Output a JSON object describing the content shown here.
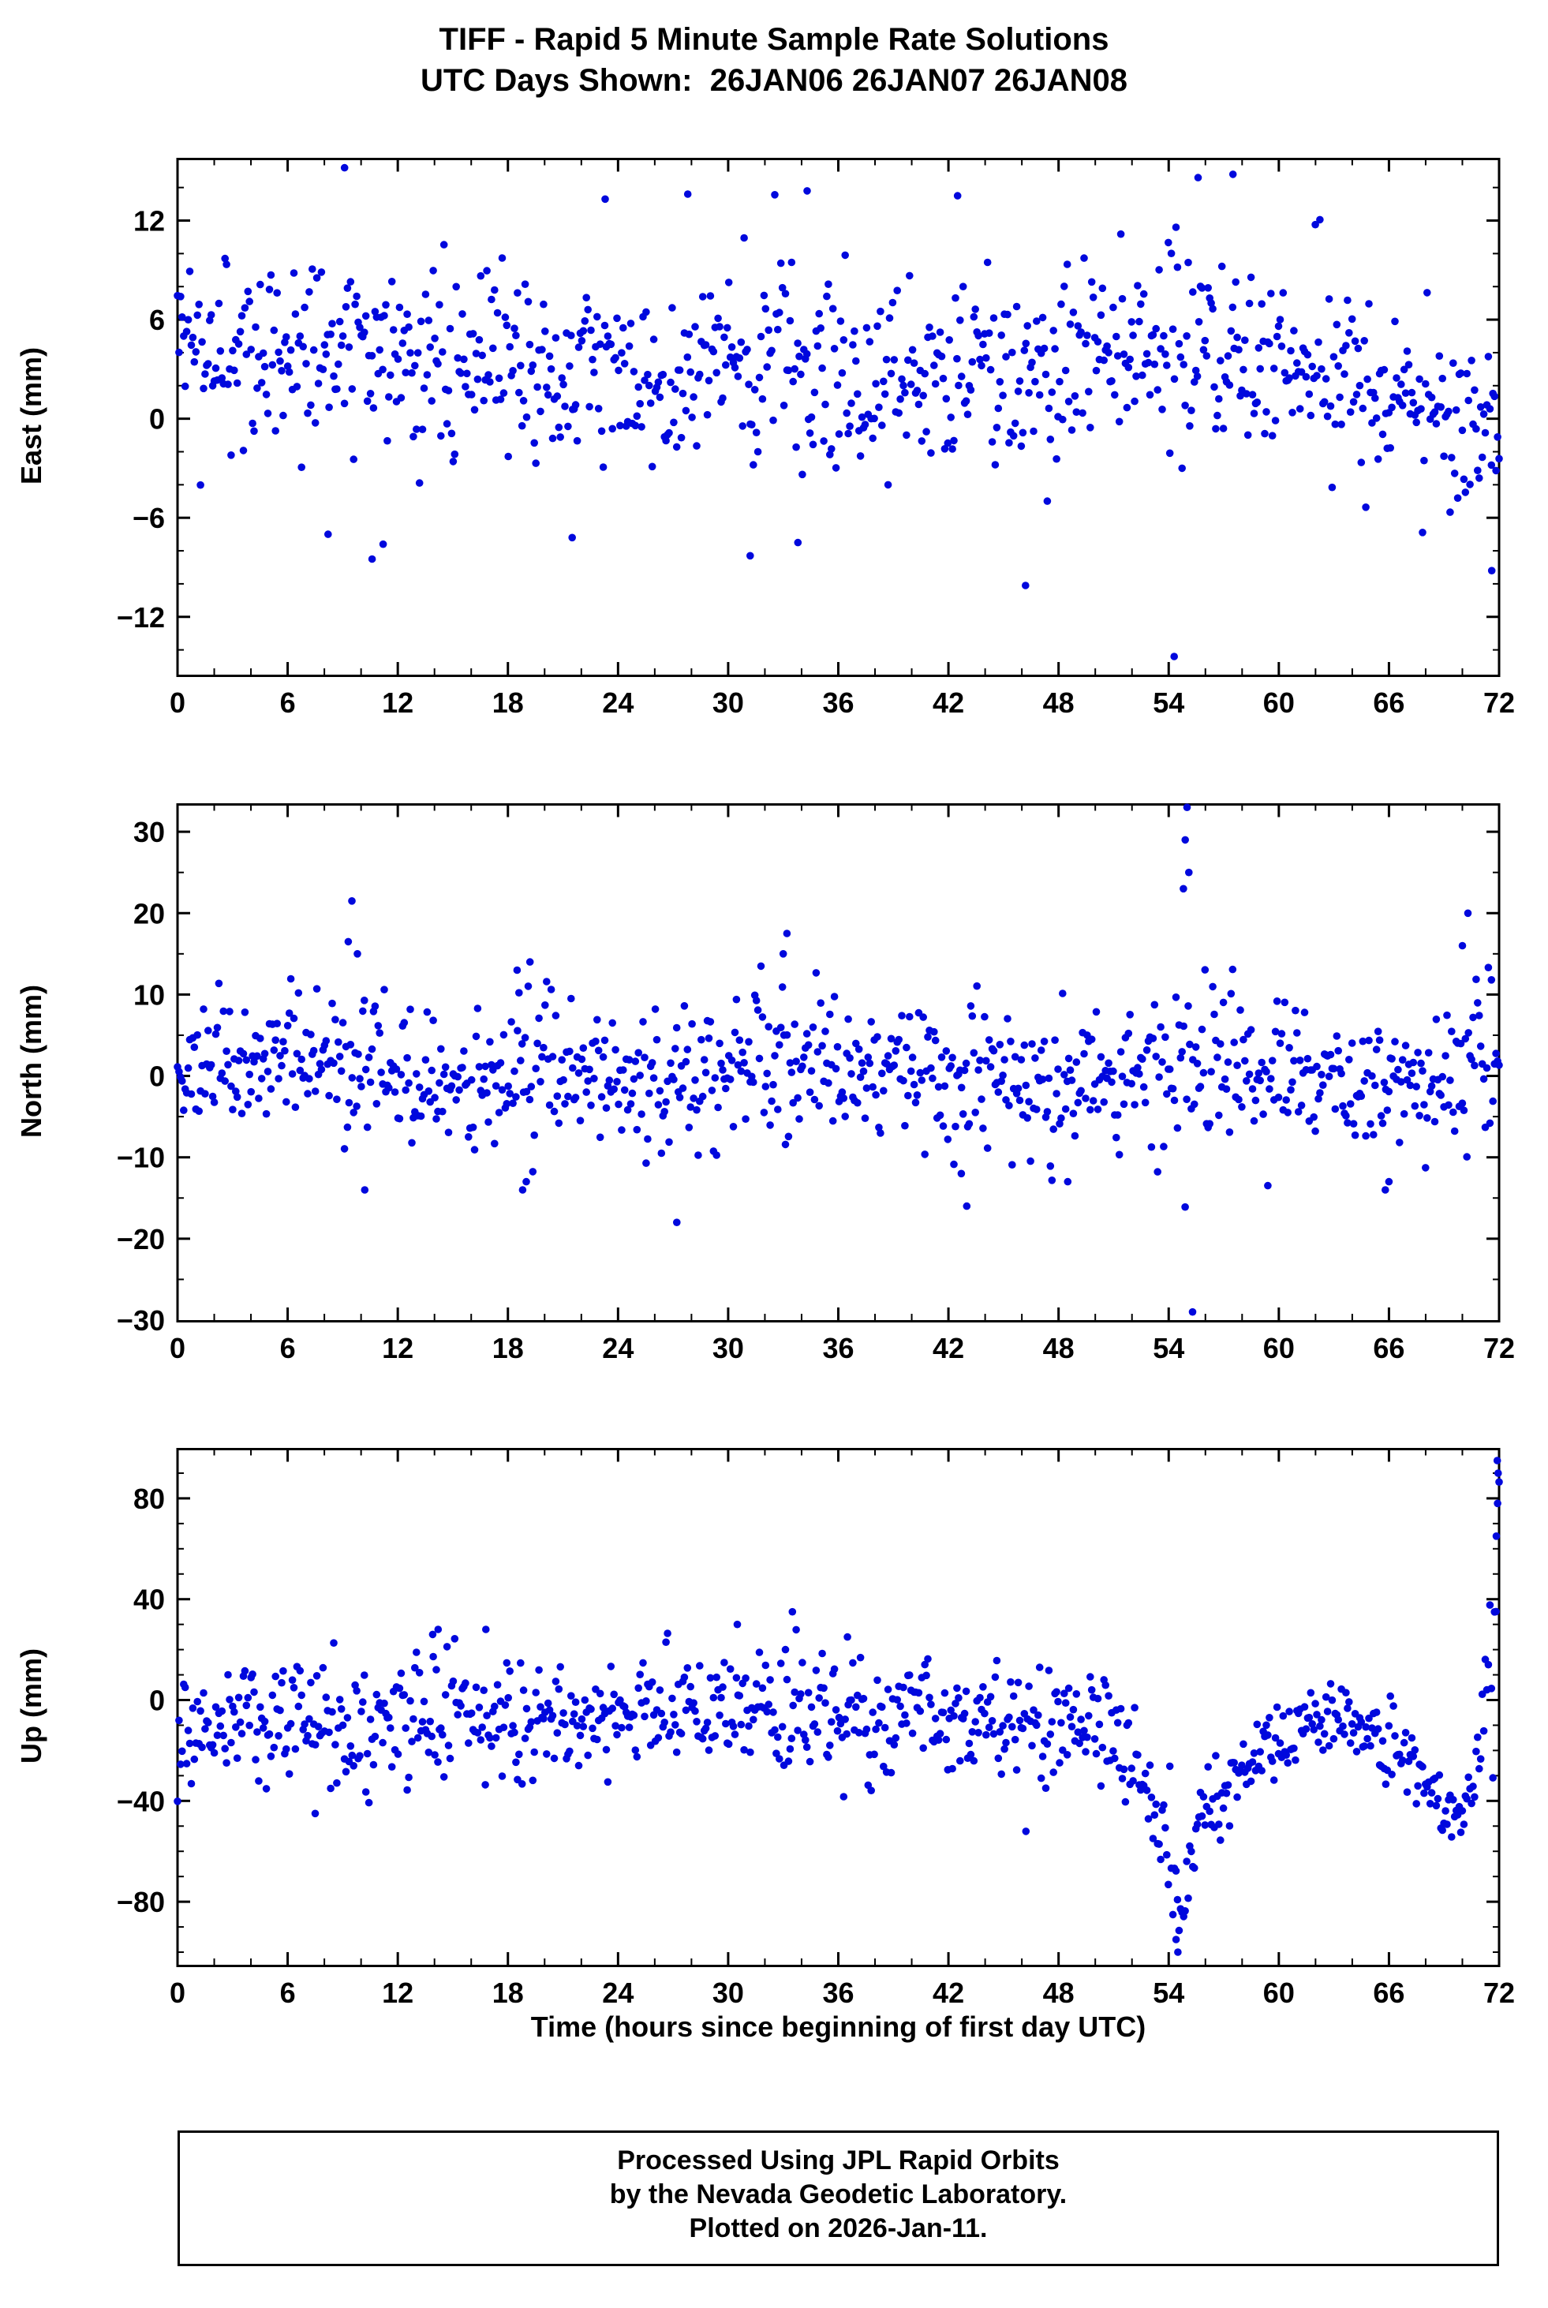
{
  "title": {
    "line1": "TIFF - Rapid 5 Minute Sample Rate Solutions",
    "line2": "UTC Days Shown:  26JAN06 26JAN07 26JAN08"
  },
  "footer": {
    "line1": "Processed Using JPL Rapid Orbits",
    "line2": "by the Nevada Geodetic Laboratory.",
    "line3": "Plotted on 2026-Jan-11."
  },
  "chart_data": {
    "type": "scatter",
    "station": "TIFF",
    "xlabel": "Time (hours since beginning of first day UTC)",
    "x_range": [
      0,
      72
    ],
    "x_ticks": [
      0,
      6,
      12,
      18,
      24,
      30,
      36,
      42,
      48,
      54,
      60,
      66,
      72
    ],
    "x_minor_step": 2,
    "sample_interval_hours": 0.0833,
    "n_points": 864,
    "seed": 42,
    "marker_color": "#0008dd",
    "marker_radius": 4.8,
    "grid": false,
    "legend": "none",
    "subplots": [
      {
        "name": "east",
        "ylabel": "East (mm)",
        "ylim": [
          -15.5,
          15.8
        ],
        "yticks": [
          -12,
          -6,
          0,
          6,
          12
        ],
        "y_minor_step": 2,
        "mean_std_profile": [
          [
            0,
            3.5,
            2.8
          ],
          [
            8,
            4.5,
            3.2
          ],
          [
            12,
            3.2,
            3.0
          ],
          [
            20,
            3.0,
            3.0
          ],
          [
            28,
            3.2,
            3.0
          ],
          [
            36,
            3.0,
            3.0
          ],
          [
            44,
            2.5,
            3.0
          ],
          [
            50,
            4.0,
            3.3
          ],
          [
            56,
            4.5,
            3.5
          ],
          [
            62,
            3.0,
            3.0
          ],
          [
            67,
            1.0,
            3.0
          ],
          [
            72,
            -1.0,
            3.2
          ]
        ],
        "outliers": [
          [
            9.1,
            15.2
          ],
          [
            55.6,
            14.6
          ],
          [
            57.5,
            14.8
          ],
          [
            54.3,
            -14.4
          ],
          [
            46.2,
            -10.1
          ],
          [
            10.6,
            -8.5
          ],
          [
            31.2,
            -8.3
          ],
          [
            71.6,
            -9.2
          ],
          [
            23.3,
            13.3
          ],
          [
            27.8,
            13.6
          ],
          [
            34.3,
            13.8
          ],
          [
            42.5,
            13.5
          ],
          [
            21.5,
            -7.2
          ],
          [
            8.2,
            -7.0
          ],
          [
            11.2,
            -7.6
          ],
          [
            33.8,
            -7.5
          ]
        ]
      },
      {
        "name": "north",
        "ylabel": "North (mm)",
        "ylim": [
          -30,
          33.5
        ],
        "yticks": [
          -30,
          -20,
          -10,
          0,
          10,
          20,
          30
        ],
        "y_minor_step": 5,
        "mean_std_profile": [
          [
            0,
            0,
            4.5
          ],
          [
            7,
            3,
            5
          ],
          [
            10,
            4,
            5.5
          ],
          [
            12,
            0,
            4
          ],
          [
            16,
            -1,
            4
          ],
          [
            19,
            0,
            5
          ],
          [
            24,
            0,
            4
          ],
          [
            27,
            -1,
            4.5
          ],
          [
            31,
            2,
            4.5
          ],
          [
            33,
            2,
            5
          ],
          [
            36,
            0,
            4
          ],
          [
            44,
            -1,
            4.5
          ],
          [
            48,
            -2,
            4.5
          ],
          [
            52,
            0,
            4
          ],
          [
            55,
            2,
            6
          ],
          [
            58,
            1,
            4.5
          ],
          [
            64,
            0,
            4
          ],
          [
            67,
            -1,
            4.5
          ],
          [
            70,
            3,
            6
          ],
          [
            72,
            1,
            5
          ]
        ],
        "outliers": [
          [
            55.0,
            33
          ],
          [
            54.9,
            29
          ],
          [
            55.1,
            25
          ],
          [
            54.8,
            23
          ],
          [
            55.3,
            -29
          ],
          [
            9.5,
            21.5
          ],
          [
            9.3,
            16.5
          ],
          [
            9.8,
            15
          ],
          [
            27.2,
            -18
          ],
          [
            33.2,
            17.5
          ],
          [
            33.0,
            15
          ],
          [
            18.8,
            -14
          ],
          [
            19.0,
            -13
          ],
          [
            10.2,
            -14
          ],
          [
            70.3,
            20
          ],
          [
            70.0,
            16
          ],
          [
            43.0,
            -16
          ],
          [
            42.7,
            -12
          ],
          [
            48.5,
            -13
          ],
          [
            65.8,
            -14
          ],
          [
            66.0,
            -13
          ],
          [
            19.2,
            14
          ],
          [
            18.5,
            13
          ]
        ]
      },
      {
        "name": "up",
        "ylabel": "Up (mm)",
        "ylim": [
          -105,
          100
        ],
        "yticks": [
          -80,
          -40,
          0,
          40,
          80
        ],
        "y_minor_step": 10,
        "mean_std_profile": [
          [
            0,
            -8,
            12
          ],
          [
            6,
            -10,
            12
          ],
          [
            10,
            -12,
            13
          ],
          [
            14,
            -5,
            13
          ],
          [
            18,
            -8,
            12
          ],
          [
            24,
            -6,
            11
          ],
          [
            30,
            -5,
            12
          ],
          [
            33,
            -2,
            13
          ],
          [
            36,
            -8,
            11
          ],
          [
            40,
            -6,
            12
          ],
          [
            44,
            -10,
            11
          ],
          [
            48,
            -8,
            12
          ],
          [
            51,
            -15,
            12
          ],
          [
            53,
            -35,
            10
          ],
          [
            54,
            -60,
            12
          ],
          [
            54.6,
            -85,
            8
          ],
          [
            55.4,
            -55,
            10
          ],
          [
            56.5,
            -38,
            8
          ],
          [
            58,
            -25,
            8
          ],
          [
            60,
            -15,
            9
          ],
          [
            63,
            -8,
            8
          ],
          [
            65,
            -10,
            8
          ],
          [
            66.5,
            -20,
            8
          ],
          [
            68,
            -35,
            7
          ],
          [
            69.5,
            -45,
            6
          ],
          [
            70.3,
            -45,
            6
          ],
          [
            71,
            -20,
            10
          ],
          [
            71.6,
            30,
            25
          ],
          [
            72,
            80,
            15
          ]
        ],
        "outliers": [
          [
            54.5,
            -100
          ],
          [
            54.4,
            -95
          ],
          [
            33.5,
            35
          ],
          [
            14.2,
            28
          ],
          [
            13.9,
            26
          ],
          [
            16.8,
            28
          ],
          [
            71.9,
            95
          ],
          [
            71.95,
            90
          ],
          [
            71.85,
            65
          ],
          [
            7.5,
            -45
          ],
          [
            30.5,
            30
          ],
          [
            36.5,
            25
          ]
        ]
      }
    ]
  }
}
